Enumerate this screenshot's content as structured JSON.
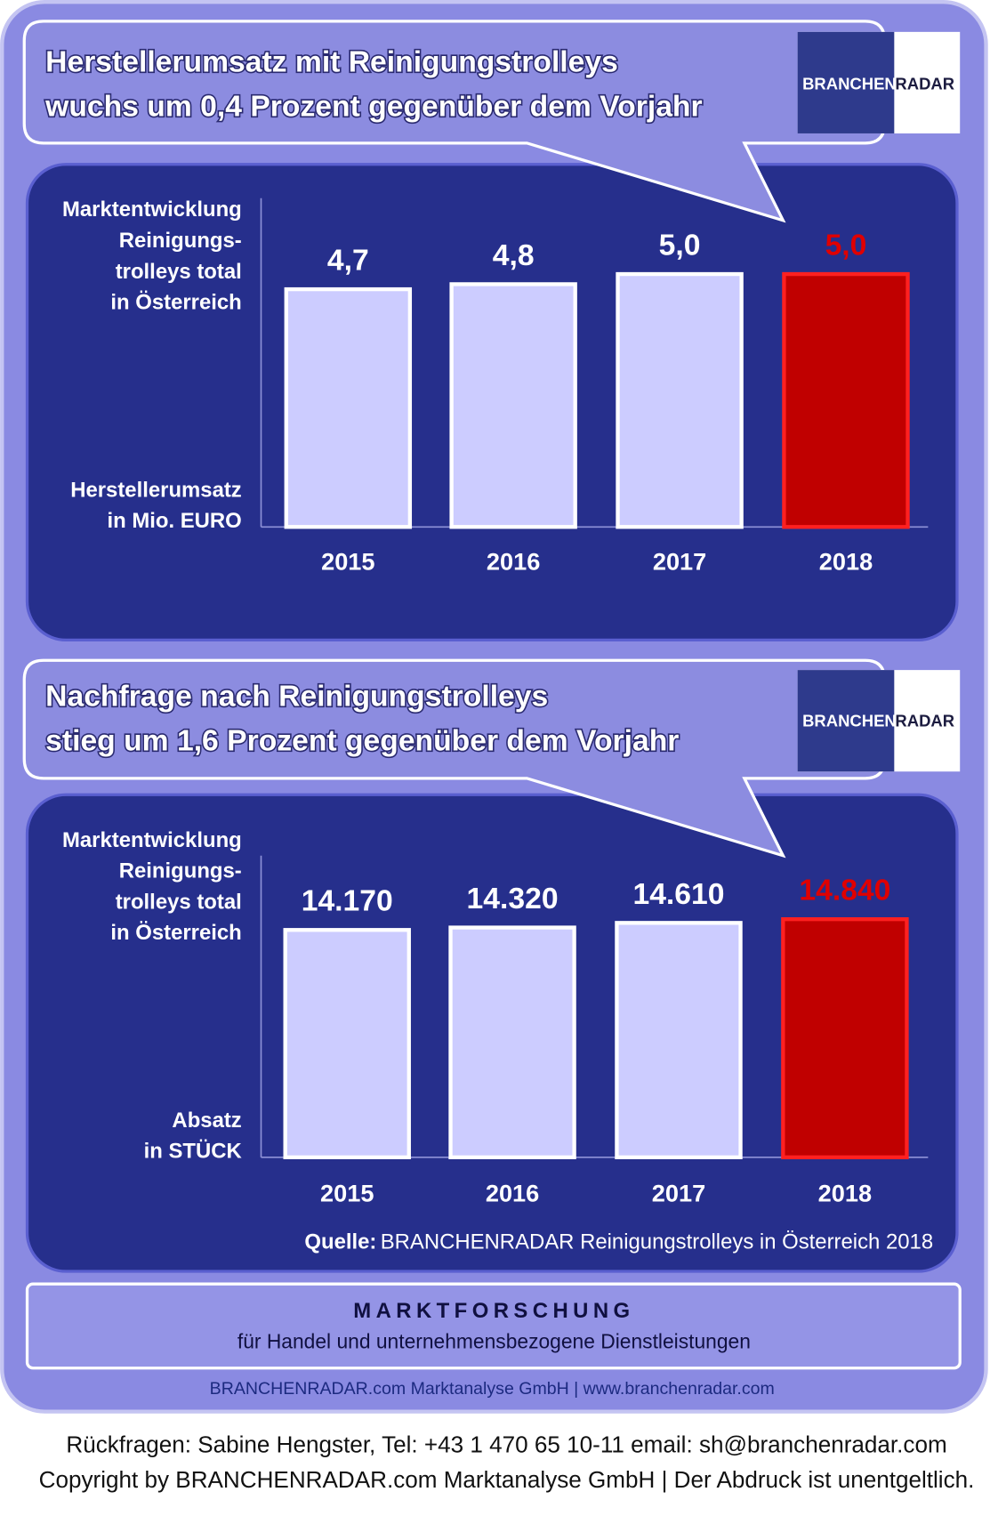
{
  "chart_data": [
    {
      "type": "bar",
      "title": [
        "Herstellerumsatz mit Reinigungstrolleys",
        "wuchs um 0,4 Prozent gegenüber dem Vorjahr"
      ],
      "annotation": [
        "Marktentwicklung",
        "Reinigungs-",
        "trolleys total",
        "in Österreich"
      ],
      "ylabel": [
        "Herstellerumsatz",
        "in Mio. EURO"
      ],
      "categories": [
        "2015",
        "2016",
        "2017",
        "2018"
      ],
      "values": [
        4.7,
        4.8,
        5.0,
        5.0
      ],
      "value_labels": [
        "4,7",
        "4,8",
        "5,0",
        "5,0"
      ],
      "colors": [
        "#ccccff",
        "#ccccff",
        "#ccccff",
        "#c00000"
      ],
      "value_label_colors": [
        "#ffffff",
        "#ffffff",
        "#ffffff",
        "#e00000"
      ],
      "ylim": [
        0,
        6.5
      ]
    },
    {
      "type": "bar",
      "title": [
        "Nachfrage nach Reinigungstrolleys",
        "stieg um 1,6 Prozent gegenüber dem Vorjahr"
      ],
      "annotation": [
        "Marktentwicklung",
        "Reinigungs-",
        "trolleys total",
        "in Österreich"
      ],
      "ylabel": [
        "Absatz",
        "in STÜCK"
      ],
      "categories": [
        "2015",
        "2016",
        "2017",
        "2018"
      ],
      "values": [
        14170,
        14320,
        14610,
        14840
      ],
      "value_labels": [
        "14.170",
        "14.320",
        "14.610",
        "14.840"
      ],
      "colors": [
        "#ccccff",
        "#ccccff",
        "#ccccff",
        "#c00000"
      ],
      "value_label_colors": [
        "#ffffff",
        "#ffffff",
        "#ffffff",
        "#e00000"
      ],
      "ylim": [
        0,
        18800
      ],
      "source_label": "Quelle:",
      "source": "BRANCHENRADAR Reinigungstrolleys in Österreich 2018"
    }
  ],
  "logo": [
    "BRANCHEN",
    "RADAR"
  ],
  "footer": {
    "heading": "MARKTFORSCHUNG",
    "subtitle": "für Handel und unternehmensbezogene Dienstleistungen",
    "company": "BRANCHENRADAR.com Marktanalyse GmbH | www.branchenradar.com",
    "contact": "Rückfragen: Sabine Hengster, Tel: +43 1 470 65 10-11 email: sh@branchenradar.com",
    "copyright": "Copyright by BRANCHENRADAR.com  Marktanalyse GmbH | Der Abdruck ist unentgeltlich."
  }
}
